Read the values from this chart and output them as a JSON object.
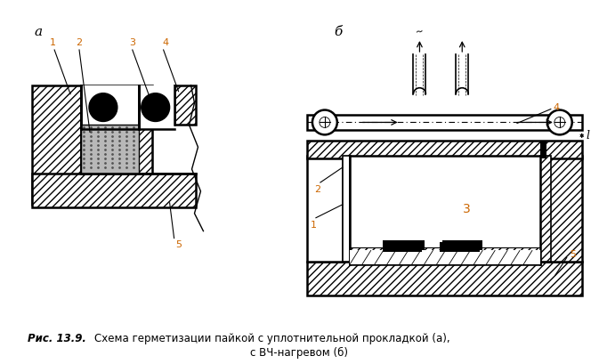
{
  "title_italic": "Рис. 13.9.",
  "title_rest": " Схема герметизации пайкой с уплотнительной прокладкой (а),",
  "title_line2": "с ВЧ-нагревом (б)",
  "label_a": "а",
  "label_b": "б",
  "bg_color": "#ffffff",
  "line_color": "#000000"
}
